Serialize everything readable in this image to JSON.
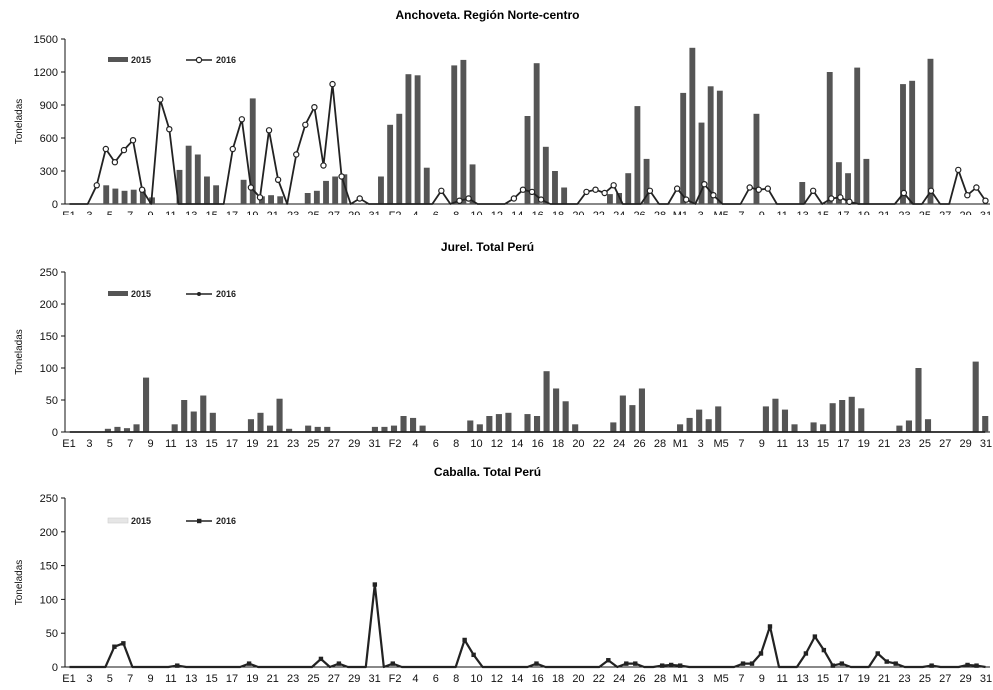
{
  "chart_data": [
    {
      "type": "bar+line",
      "title": "Anchoveta. Región Norte-centro",
      "ylabel": "Toneladas",
      "ylim": [
        0,
        1500
      ],
      "yticks": [
        0,
        300,
        600,
        900,
        1200,
        1500
      ],
      "legend": "top-left",
      "series": [
        {
          "name": "2015",
          "kind": "bar",
          "color": "#555555",
          "values": [
            0,
            0,
            0,
            0,
            170,
            140,
            120,
            130,
            130,
            60,
            0,
            0,
            310,
            530,
            450,
            250,
            170,
            0,
            0,
            220,
            960,
            70,
            80,
            70,
            0,
            0,
            100,
            120,
            210,
            250,
            270,
            0,
            0,
            0,
            250,
            720,
            820,
            1180,
            1170,
            330,
            0,
            0,
            1260,
            1310,
            360,
            0,
            0,
            0,
            0,
            0,
            800,
            1280,
            520,
            300,
            150,
            0,
            0,
            0,
            0,
            90,
            100,
            280,
            890,
            410,
            0,
            0,
            0,
            1010,
            1420,
            740,
            1070,
            1030,
            0,
            0,
            0,
            820,
            0,
            0,
            0,
            0,
            200,
            0,
            0,
            1200,
            380,
            280,
            1240,
            410,
            0,
            0,
            0,
            1090,
            1120,
            0,
            1320,
            0,
            0,
            0,
            0,
            0,
            0
          ]
        },
        {
          "name": "2016",
          "kind": "line",
          "color": "#222222",
          "values": [
            0,
            0,
            0,
            170,
            500,
            380,
            490,
            580,
            130,
            0,
            950,
            680,
            0,
            0,
            0,
            0,
            0,
            0,
            500,
            770,
            150,
            60,
            670,
            220,
            0,
            450,
            720,
            880,
            350,
            1090,
            250,
            0,
            50,
            0,
            0,
            0,
            0,
            0,
            0,
            0,
            0,
            120,
            0,
            30,
            50,
            0,
            0,
            0,
            0,
            50,
            130,
            110,
            40,
            0,
            0,
            0,
            0,
            110,
            130,
            100,
            170,
            0,
            0,
            0,
            120,
            0,
            0,
            140,
            40,
            0,
            180,
            80,
            0,
            0,
            0,
            150,
            130,
            140,
            0,
            0,
            0,
            0,
            120,
            0,
            50,
            60,
            20,
            0,
            0,
            0,
            0,
            0,
            100,
            0,
            0,
            120,
            0,
            0,
            310,
            80,
            150,
            30
          ]
        }
      ],
      "x_tick_labels": [
        "E1",
        "3",
        "5",
        "7",
        "9",
        "11",
        "13",
        "15",
        "17",
        "19",
        "21",
        "23",
        "25",
        "27",
        "29",
        "31",
        "F2",
        "4",
        "6",
        "8",
        "10",
        "12",
        "14",
        "16",
        "18",
        "20",
        "22",
        "24",
        "26",
        "28",
        "M1",
        "3",
        "M5",
        "7",
        "9",
        "11",
        "13",
        "15",
        "17",
        "19",
        "21",
        "23",
        "25",
        "27",
        "29",
        "31"
      ]
    },
    {
      "type": "bar+line",
      "title": "Jurel. Total Perú",
      "ylabel": "Toneladas",
      "ylim": [
        0,
        250
      ],
      "yticks": [
        0,
        50,
        100,
        150,
        200,
        250
      ],
      "legend": "top-left",
      "series": [
        {
          "name": "2015",
          "kind": "bar",
          "color": "#555555",
          "values": [
            0,
            0,
            0,
            0,
            5,
            8,
            6,
            12,
            85,
            0,
            0,
            12,
            50,
            32,
            57,
            30,
            0,
            0,
            0,
            20,
            30,
            10,
            52,
            5,
            0,
            10,
            8,
            8,
            0,
            0,
            0,
            0,
            8,
            8,
            10,
            25,
            22,
            10,
            0,
            0,
            0,
            0,
            18,
            12,
            25,
            28,
            30,
            0,
            28,
            25,
            95,
            68,
            48,
            12,
            0,
            0,
            0,
            15,
            57,
            42,
            68,
            0,
            0,
            0,
            12,
            22,
            35,
            20,
            40,
            0,
            0,
            0,
            0,
            40,
            52,
            35,
            12,
            0,
            15,
            12,
            45,
            50,
            55,
            37,
            0,
            0,
            0,
            10,
            18,
            100,
            20,
            0,
            0,
            0,
            0,
            110,
            25
          ]
        },
        {
          "name": "2016",
          "kind": "line",
          "color": "#222222",
          "values": [
            0,
            0,
            0,
            0,
            0,
            0,
            0,
            0,
            0,
            0,
            0,
            0,
            0,
            0,
            0,
            0,
            0,
            0,
            0,
            0,
            0,
            0,
            0,
            0,
            0,
            0,
            0,
            0,
            0,
            0,
            0,
            0,
            0,
            0,
            0,
            0,
            0,
            0,
            0,
            0,
            0,
            0,
            0,
            0,
            0,
            0,
            0,
            0,
            0,
            0,
            0,
            0,
            0,
            0,
            0,
            0,
            0,
            0,
            0,
            0,
            0,
            0,
            0,
            0,
            0,
            0,
            0,
            0,
            0,
            0,
            0,
            0,
            0,
            0,
            0,
            0,
            0,
            0,
            0,
            0,
            0,
            0,
            0,
            0,
            0,
            0,
            0,
            0,
            0,
            0,
            0,
            0,
            0,
            0,
            0,
            0,
            0
          ]
        }
      ],
      "x_tick_labels": [
        "E1",
        "3",
        "5",
        "7",
        "9",
        "11",
        "13",
        "15",
        "17",
        "19",
        "21",
        "23",
        "25",
        "27",
        "29",
        "31",
        "F2",
        "4",
        "6",
        "8",
        "10",
        "12",
        "14",
        "16",
        "18",
        "20",
        "22",
        "24",
        "26",
        "28",
        "M1",
        "3",
        "M5",
        "7",
        "9",
        "11",
        "13",
        "15",
        "17",
        "19",
        "21",
        "23",
        "25",
        "27",
        "29",
        "31"
      ]
    },
    {
      "type": "bar+line",
      "title": "Caballa. Total Perú",
      "ylabel": "Toneladas",
      "ylim": [
        0,
        250
      ],
      "yticks": [
        0,
        50,
        100,
        150,
        200,
        250
      ],
      "legend": "top-left",
      "series": [
        {
          "name": "2015",
          "kind": "bar",
          "color": "#e6e6e6",
          "values": [
            0,
            0,
            0,
            0,
            0,
            0,
            0,
            0,
            0,
            0,
            0,
            0,
            0,
            0,
            0,
            0,
            0,
            0,
            0,
            0,
            0,
            0,
            0,
            0,
            0,
            0,
            0,
            0,
            0,
            0,
            0,
            0,
            0,
            0,
            0,
            0,
            0,
            0,
            0,
            0,
            0,
            0,
            0,
            0,
            0,
            0,
            0,
            0,
            0,
            0,
            0,
            0,
            0,
            0,
            0,
            0,
            0,
            0,
            0,
            0,
            0,
            0,
            0,
            0,
            0,
            0,
            0,
            0,
            0,
            0,
            0,
            0,
            0,
            0,
            0,
            0,
            0,
            0,
            0,
            0,
            0,
            0,
            0,
            0,
            0,
            0,
            0,
            0,
            0,
            0,
            0,
            0,
            0,
            0,
            0,
            0,
            0
          ]
        },
        {
          "name": "2016",
          "kind": "line",
          "color": "#222222",
          "values": [
            0,
            0,
            0,
            0,
            0,
            30,
            35,
            0,
            0,
            0,
            0,
            0,
            2,
            0,
            0,
            0,
            0,
            0,
            0,
            0,
            5,
            0,
            0,
            0,
            0,
            0,
            0,
            0,
            12,
            0,
            5,
            0,
            0,
            0,
            122,
            0,
            5,
            0,
            0,
            0,
            0,
            0,
            0,
            0,
            40,
            18,
            0,
            0,
            0,
            0,
            0,
            0,
            5,
            0,
            0,
            0,
            0,
            0,
            0,
            0,
            10,
            0,
            5,
            5,
            0,
            0,
            2,
            3,
            2,
            0,
            0,
            0,
            0,
            0,
            0,
            5,
            5,
            20,
            60,
            0,
            0,
            0,
            20,
            45,
            25,
            2,
            5,
            0,
            0,
            0,
            20,
            8,
            5,
            0,
            0,
            0,
            2,
            0,
            0,
            0,
            3,
            2,
            0
          ]
        }
      ],
      "x_tick_labels": [
        "E1",
        "3",
        "5",
        "7",
        "9",
        "11",
        "13",
        "15",
        "17",
        "19",
        "21",
        "23",
        "25",
        "27",
        "29",
        "31",
        "F2",
        "4",
        "6",
        "8",
        "10",
        "12",
        "14",
        "16",
        "18",
        "20",
        "22",
        "24",
        "26",
        "28",
        "M1",
        "3",
        "M5",
        "7",
        "9",
        "11",
        "13",
        "15",
        "17",
        "19",
        "21",
        "23",
        "25",
        "27",
        "29",
        "31"
      ]
    }
  ]
}
